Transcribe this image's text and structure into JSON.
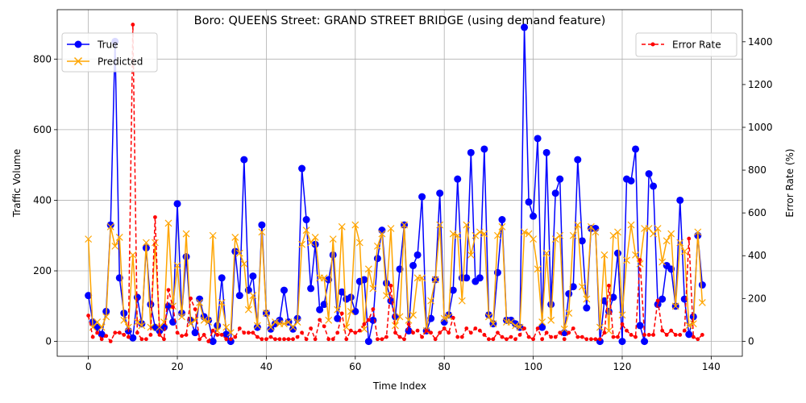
{
  "chart_data": {
    "type": "line",
    "title": "Boro: QUEENS Street: GRAND STREET BRIDGE (using demand feature)",
    "xlabel": "Time Index",
    "ylabel": "Traffic Volume",
    "y2label": "Error Rate (%)",
    "xlim": [
      -7,
      147
    ],
    "ylim": [
      -42,
      940
    ],
    "y2lim": [
      -70,
      1550
    ],
    "xticks": [
      0,
      20,
      40,
      60,
      80,
      100,
      120,
      140
    ],
    "yticks": [
      0,
      200,
      400,
      600,
      800
    ],
    "y2ticks": [
      0,
      200,
      400,
      600,
      800,
      1000,
      1200,
      1400
    ],
    "grid": true,
    "legend_left": {
      "placement": "upper-left",
      "entries": [
        "True",
        "Predicted"
      ]
    },
    "legend_right": {
      "placement": "upper-right",
      "entries": [
        "Error Rate"
      ]
    },
    "colors": {
      "true": "#0000ff",
      "predicted": "#ffa500",
      "error": "#ff0000",
      "grid": "#b0b0b0"
    },
    "series": [
      {
        "name": "True",
        "axis": "left",
        "style": "solid-circle",
        "values": [
          130,
          55,
          40,
          20,
          85,
          330,
          850,
          180,
          80,
          30,
          10,
          125,
          50,
          265,
          105,
          40,
          30,
          40,
          100,
          55,
          390,
          80,
          240,
          60,
          25,
          120,
          70,
          60,
          0,
          45,
          180,
          20,
          0,
          255,
          130,
          515,
          145,
          185,
          40,
          330,
          80,
          35,
          50,
          60,
          145,
          55,
          35,
          65,
          490,
          345,
          150,
          275,
          90,
          105,
          175,
          245,
          65,
          140,
          120,
          125,
          85,
          170,
          175,
          0,
          60,
          235,
          315,
          165,
          115,
          70,
          205,
          330,
          30,
          215,
          245,
          410,
          30,
          65,
          175,
          420,
          55,
          75,
          145,
          460,
          180,
          180,
          535,
          170,
          180,
          545,
          75,
          50,
          195,
          345,
          60,
          60,
          50,
          40,
          890,
          395,
          355,
          575,
          40,
          535,
          105,
          420,
          460,
          25,
          135,
          155,
          515,
          285,
          95,
          320,
          320,
          0,
          115,
          85,
          125,
          250,
          0,
          460,
          455,
          545,
          45,
          0,
          475,
          440,
          105,
          120,
          215,
          205,
          100,
          400,
          120,
          20,
          70,
          300,
          160
        ]
      },
      {
        "name": "Predicted",
        "axis": "left",
        "style": "solid-x",
        "values": [
          290,
          40,
          55,
          40,
          70,
          325,
          270,
          295,
          60,
          40,
          245,
          55,
          45,
          280,
          40,
          280,
          40,
          55,
          335,
          100,
          215,
          70,
          305,
          50,
          60,
          110,
          60,
          55,
          300,
          30,
          110,
          40,
          25,
          295,
          250,
          220,
          90,
          130,
          45,
          310,
          80,
          40,
          55,
          50,
          50,
          55,
          40,
          55,
          275,
          315,
          280,
          295,
          180,
          180,
          60,
          290,
          90,
          325,
          40,
          85,
          330,
          280,
          35,
          205,
          150,
          270,
          305,
          130,
          320,
          45,
          70,
          330,
          60,
          75,
          180,
          180,
          30,
          115,
          175,
          330,
          65,
          70,
          305,
          300,
          115,
          330,
          245,
          300,
          310,
          305,
          70,
          50,
          300,
          325,
          55,
          55,
          45,
          40,
          310,
          305,
          290,
          205,
          55,
          250,
          60,
          290,
          300,
          35,
          80,
          300,
          330,
          155,
          120,
          325,
          310,
          40,
          245,
          30,
          300,
          310,
          75,
          230,
          330,
          245,
          220,
          320,
          320,
          305,
          320,
          225,
          285,
          305,
          100,
          280,
          255,
          45,
          50,
          310,
          110
        ]
      },
      {
        "name": "Error Rate",
        "axis": "right",
        "style": "dashed-dot",
        "values": [
          120,
          20,
          40,
          10,
          25,
          0,
          40,
          40,
          30,
          20,
          1480,
          40,
          10,
          10,
          30,
          580,
          30,
          10,
          240,
          160,
          40,
          25,
          30,
          200,
          150,
          10,
          30,
          0,
          50,
          30,
          30,
          10,
          10,
          20,
          60,
          40,
          40,
          40,
          20,
          10,
          10,
          20,
          10,
          10,
          10,
          10,
          10,
          20,
          40,
          10,
          60,
          10,
          100,
          70,
          10,
          10,
          40,
          130,
          10,
          50,
          40,
          50,
          80,
          100,
          150,
          10,
          10,
          20,
          260,
          40,
          20,
          10,
          80,
          40,
          50,
          20,
          50,
          40,
          10,
          40,
          60,
          40,
          110,
          20,
          20,
          60,
          40,
          60,
          50,
          30,
          10,
          10,
          40,
          20,
          10,
          20,
          10,
          30,
          60,
          20,
          10,
          60,
          10,
          40,
          20,
          20,
          40,
          10,
          40,
          60,
          20,
          20,
          10,
          10,
          10,
          10,
          40,
          260,
          20,
          20,
          80,
          50,
          30,
          20,
          380,
          30,
          30,
          30,
          190,
          50,
          30,
          50,
          30,
          30,
          50,
          480,
          20,
          10,
          30
        ]
      }
    ]
  }
}
